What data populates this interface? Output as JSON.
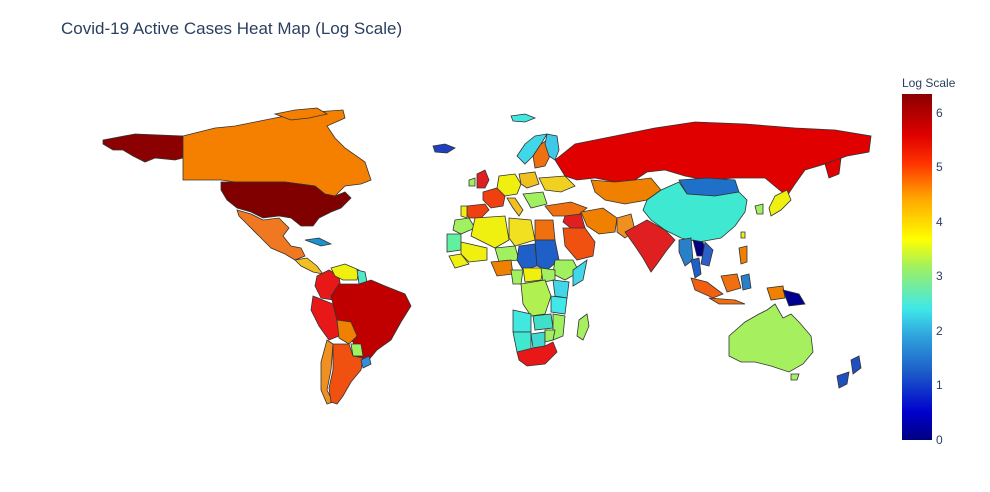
{
  "title": "Covid-19 Active Cases Heat Map (Log Scale)",
  "colorbar": {
    "title": "Log Scale",
    "range": [
      0,
      6.35
    ],
    "ticks": [
      "0",
      "1",
      "2",
      "3",
      "4",
      "5",
      "6"
    ]
  },
  "chart_data": {
    "type": "choropleth",
    "title": "Covid-19 Active Cases Heat Map (Log Scale)",
    "colorbar_title": "Log Scale",
    "zlim": [
      0,
      6.35
    ],
    "projection": "natural earth",
    "regions": [
      {
        "name": "United States",
        "value": 6.3
      },
      {
        "name": "Alaska",
        "value": 6.3
      },
      {
        "name": "Canada",
        "value": 4.4
      },
      {
        "name": "Mexico",
        "value": 4.5
      },
      {
        "name": "Brazil",
        "value": 6.0
      },
      {
        "name": "Peru",
        "value": 5.5
      },
      {
        "name": "Argentina",
        "value": 5.0
      },
      {
        "name": "Colombia",
        "value": 5.4
      },
      {
        "name": "Venezuela",
        "value": 4.0
      },
      {
        "name": "Bolivia",
        "value": 4.6
      },
      {
        "name": "Chile",
        "value": 4.4
      },
      {
        "name": "Russia",
        "value": 5.6
      },
      {
        "name": "China",
        "value": 2.6
      },
      {
        "name": "Mongolia",
        "value": 1.7
      },
      {
        "name": "India",
        "value": 5.5
      },
      {
        "name": "Kazakhstan",
        "value": 4.5
      },
      {
        "name": "Iran",
        "value": 4.7
      },
      {
        "name": "Saudi Arabia",
        "value": 4.8
      },
      {
        "name": "Australia",
        "value": 3.3
      },
      {
        "name": "New Zealand",
        "value": 1.2
      },
      {
        "name": "Papua New Guinea",
        "value": 0.3
      },
      {
        "name": "Indonesia",
        "value": 4.4
      },
      {
        "name": "South Africa",
        "value": 5.5
      },
      {
        "name": "Egypt",
        "value": 4.6
      },
      {
        "name": "Algeria",
        "value": 3.2
      },
      {
        "name": "Libya",
        "value": 3.8
      },
      {
        "name": "Sudan",
        "value": 1.8
      },
      {
        "name": "Chad",
        "value": 1.5
      },
      {
        "name": "Nigeria",
        "value": 4.3
      },
      {
        "name": "DR Congo",
        "value": 3.0
      },
      {
        "name": "Angola",
        "value": 2.6
      },
      {
        "name": "Madagascar",
        "value": 3.1
      },
      {
        "name": "Norway",
        "value": 2.4
      },
      {
        "name": "Sweden",
        "value": 4.3
      },
      {
        "name": "Finland",
        "value": 2.4
      },
      {
        "name": "Greenland",
        "value": 1.0
      },
      {
        "name": "United Kingdom",
        "value": 5.2
      },
      {
        "name": "France",
        "value": 5.0
      },
      {
        "name": "Spain",
        "value": 5.1
      },
      {
        "name": "Germany",
        "value": 4.0
      },
      {
        "name": "Turkey",
        "value": 4.3
      },
      {
        "name": "Japan",
        "value": 3.5
      },
      {
        "name": "Myanmar",
        "value": 2.0
      },
      {
        "name": "Laos",
        "value": 0.3
      },
      {
        "name": "Vietnam",
        "value": 1.6
      },
      {
        "name": "Philippines",
        "value": 4.5
      },
      {
        "name": "Iceland",
        "value": 2.5
      }
    ]
  }
}
